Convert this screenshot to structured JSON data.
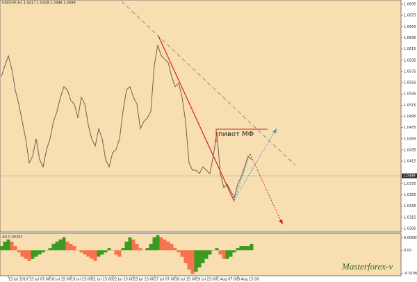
{
  "chart_data": [
    {
      "type": "line",
      "title": "USDCHF,H1 1.0417 1.0429 1.0388 1.0389",
      "categories": [
        null,
        null,
        "13 Jul 2010",
        null,
        null,
        null,
        null,
        null,
        "15 Jul 07:00",
        null,
        null,
        null,
        null,
        null,
        "16 Jul 15:00",
        null,
        null,
        null,
        null,
        null,
        "19 Jul 23:00",
        null,
        null,
        null,
        null,
        null,
        "21 Jul 15:00",
        null,
        null,
        null,
        null,
        null,
        "22 Jul 15:00",
        null,
        null,
        null,
        null,
        null,
        "23 Jul 23:00",
        null,
        null,
        null,
        null,
        null,
        "27 Jul 07:00",
        null,
        null,
        null,
        null,
        null,
        "28 Jul 15:00",
        null,
        null,
        null,
        null,
        null,
        "29 Jul 23:00",
        null,
        null,
        null,
        null,
        null,
        "2 Aug 07:00",
        null,
        null,
        null,
        null,
        null,
        "3 Aug 15:00",
        null,
        null,
        null,
        null
      ],
      "series": [
        {
          "name": "USDCHF,H1",
          "color": "#6e6048",
          "values": [
            1.0566,
            1.0585,
            1.0603,
            1.0579,
            1.0542,
            1.0517,
            1.0486,
            1.0455,
            1.0412,
            1.0424,
            1.0455,
            1.0418,
            1.0405,
            1.0436,
            1.0455,
            1.0486,
            1.0504,
            1.0529,
            1.0548,
            1.0542,
            1.0523,
            1.0517,
            1.0492,
            1.0529,
            1.0517,
            1.048,
            1.0455,
            1.0442,
            1.0473,
            1.0455,
            1.0418,
            1.0405,
            1.043,
            1.0436,
            1.0455,
            1.0504,
            1.0542,
            1.0548,
            1.0529,
            1.0517,
            1.0473,
            1.0486,
            1.0492,
            1.0504,
            1.0585,
            1.0622,
            1.0603,
            1.0597,
            1.0591,
            1.0566,
            1.0548,
            1.0554,
            1.0529,
            1.0486,
            1.0412,
            1.0399,
            1.0399,
            1.0393,
            1.0405,
            1.0399,
            1.0393,
            1.0424,
            1.0467,
            1.0393,
            1.0368,
            1.0374,
            1.0362,
            1.035,
            1.0374,
            1.0387,
            1.0405,
            1.0424,
            1.0418
          ]
        }
      ],
      "current_price": 1.0389,
      "annotation": "пивот МФ",
      "ylim": [
        1.029,
        1.07
      ],
      "yticks": [
        1.0695,
        1.0675,
        1.0655,
        1.0635,
        1.0615,
        1.0595,
        1.0575,
        1.0555,
        1.0535,
        1.0515,
        1.0495,
        1.0475,
        1.0455,
        1.0435,
        1.0415,
        1.0375,
        1.0355,
        1.0335,
        1.0315,
        1.0295
      ]
    },
    {
      "type": "bar",
      "title": "AO 0.00252",
      "up_color": "#3a9a22",
      "down_color": "#f5734f",
      "values": [
        0.002,
        0.004,
        0.005,
        0.004,
        0.002,
        -0.001,
        -0.003,
        -0.004,
        -0.005,
        -0.004,
        -0.003,
        -0.002,
        -0.001,
        0.0,
        0.001,
        0.003,
        0.004,
        0.005,
        0.006,
        0.004,
        0.003,
        0.002,
        0.0,
        -0.001,
        -0.002,
        -0.003,
        -0.004,
        -0.005,
        -0.003,
        -0.002,
        -0.001,
        0.001,
        0.0,
        -0.002,
        -0.003,
        0.001,
        0.004,
        0.006,
        0.005,
        0.003,
        0.001,
        0.0,
        0.001,
        0.003,
        0.006,
        0.007,
        0.006,
        0.005,
        0.004,
        0.003,
        0.001,
        -0.001,
        -0.003,
        -0.006,
        -0.009,
        -0.011,
        -0.01,
        -0.008,
        -0.006,
        -0.004,
        -0.002,
        0.0,
        0.001,
        -0.002,
        -0.004,
        -0.004,
        -0.003,
        -0.001,
        0.001,
        0.002,
        0.002,
        0.002,
        0.003
      ],
      "ylim": [
        -0.0115,
        0.0075
      ],
      "yticks": [
        0.00567,
        {
          "value": 0,
          "label": "0.00"
        },
        -0.01067
      ]
    },
    {
      "watermark": "Masterforex-v"
    }
  ]
}
